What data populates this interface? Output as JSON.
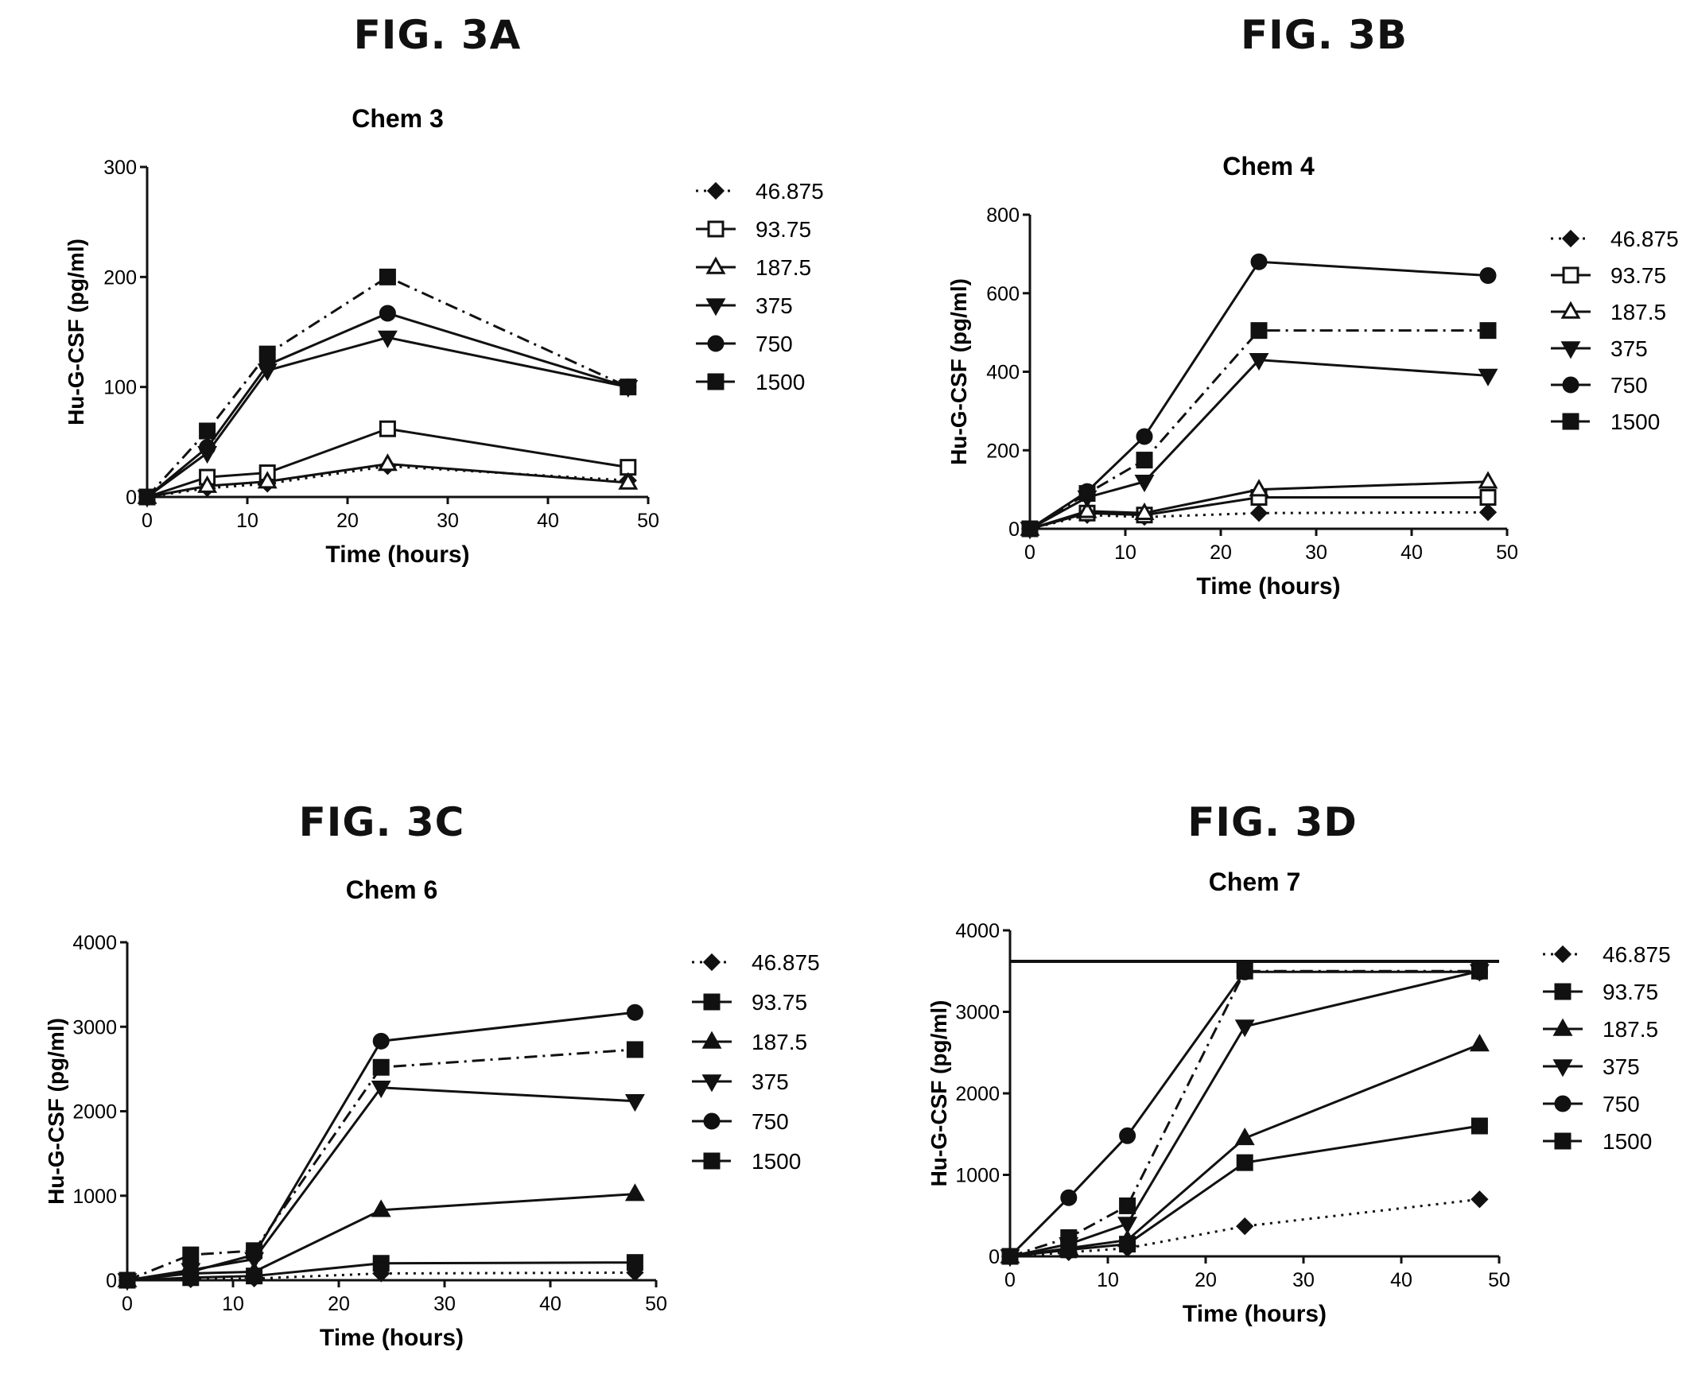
{
  "figures": [
    {
      "label": "FIG. 3A"
    },
    {
      "label": "FIG. 3B"
    },
    {
      "label": "FIG. 3C"
    },
    {
      "label": "FIG. 3D"
    }
  ],
  "chart_data": [
    {
      "type": "line",
      "title": "Chem 3",
      "xlabel": "Time (hours)",
      "ylabel": "Hu-G-CSF (pg/ml)",
      "xlim": [
        0,
        50
      ],
      "ylim": [
        0,
        300
      ],
      "xticks": [
        0,
        10,
        20,
        30,
        40,
        50
      ],
      "yticks": [
        0,
        100,
        200,
        300
      ],
      "legend": "right",
      "x": [
        0,
        6,
        12,
        24,
        48
      ],
      "series": [
        {
          "name": "46.875",
          "marker": "diamond",
          "dash": "dot",
          "values": [
            0,
            8,
            12,
            28,
            15
          ]
        },
        {
          "name": "93.75",
          "marker": "square-open",
          "dash": "solid",
          "values": [
            0,
            18,
            22,
            62,
            27
          ]
        },
        {
          "name": "187.5",
          "marker": "triangle-open",
          "dash": "solid",
          "values": [
            0,
            10,
            14,
            30,
            13
          ]
        },
        {
          "name": "375",
          "marker": "triangle-down",
          "dash": "solid",
          "values": [
            0,
            40,
            115,
            145,
            100
          ]
        },
        {
          "name": "750",
          "marker": "circle",
          "dash": "solid",
          "values": [
            0,
            45,
            120,
            167,
            100
          ]
        },
        {
          "name": "1500",
          "marker": "square",
          "dash": "dashdot",
          "values": [
            0,
            60,
            130,
            200,
            100
          ]
        }
      ]
    },
    {
      "type": "line",
      "title": "Chem 4",
      "xlabel": "Time (hours)",
      "ylabel": "Hu-G-CSF (pg/ml)",
      "xlim": [
        0,
        50
      ],
      "ylim": [
        0,
        800
      ],
      "xticks": [
        0,
        10,
        20,
        30,
        40,
        50
      ],
      "yticks": [
        0,
        200,
        400,
        600,
        800
      ],
      "legend": "right",
      "x": [
        0,
        6,
        12,
        24,
        48
      ],
      "series": [
        {
          "name": "46.875",
          "marker": "diamond",
          "dash": "dot",
          "values": [
            0,
            35,
            30,
            40,
            42
          ]
        },
        {
          "name": "93.75",
          "marker": "square-open",
          "dash": "solid",
          "values": [
            0,
            40,
            35,
            80,
            80
          ]
        },
        {
          "name": "187.5",
          "marker": "triangle-open",
          "dash": "solid",
          "values": [
            0,
            45,
            40,
            100,
            120
          ]
        },
        {
          "name": "375",
          "marker": "triangle-down",
          "dash": "solid",
          "values": [
            0,
            80,
            120,
            430,
            390
          ]
        },
        {
          "name": "750",
          "marker": "circle",
          "dash": "solid",
          "values": [
            0,
            95,
            235,
            680,
            645
          ]
        },
        {
          "name": "1500",
          "marker": "square",
          "dash": "dashdot",
          "values": [
            0,
            90,
            175,
            505,
            505
          ]
        }
      ]
    },
    {
      "type": "line",
      "title": "Chem 6",
      "xlabel": "Time (hours)",
      "ylabel": "Hu-G-CSF (pg/ml)",
      "xlim": [
        0,
        50
      ],
      "ylim": [
        0,
        4000
      ],
      "xticks": [
        0,
        10,
        20,
        30,
        40,
        50
      ],
      "yticks": [
        0,
        1000,
        2000,
        3000,
        4000
      ],
      "legend": "right",
      "x": [
        0,
        6,
        12,
        24,
        48
      ],
      "series": [
        {
          "name": "46.875",
          "marker": "diamond",
          "dash": "dot",
          "values": [
            0,
            10,
            20,
            80,
            90
          ]
        },
        {
          "name": "93.75",
          "marker": "square",
          "dash": "solid",
          "values": [
            0,
            30,
            50,
            200,
            210
          ]
        },
        {
          "name": "187.5",
          "marker": "triangle",
          "dash": "solid",
          "values": [
            0,
            80,
            100,
            830,
            1020
          ]
        },
        {
          "name": "375",
          "marker": "triangle-down",
          "dash": "solid",
          "values": [
            0,
            120,
            250,
            2280,
            2120
          ]
        },
        {
          "name": "750",
          "marker": "circle",
          "dash": "solid",
          "values": [
            0,
            100,
            300,
            2830,
            3170
          ]
        },
        {
          "name": "1500",
          "marker": "square",
          "dash": "dashdot",
          "values": [
            0,
            300,
            350,
            2520,
            2730
          ]
        }
      ]
    },
    {
      "type": "line",
      "title": "Chem 7",
      "xlabel": "Time (hours)",
      "ylabel": "Hu-G-CSF (pg/ml)",
      "xlim": [
        0,
        50
      ],
      "ylim": [
        0,
        4000
      ],
      "xticks": [
        0,
        10,
        20,
        30,
        40,
        50
      ],
      "yticks": [
        0,
        1000,
        2000,
        3000,
        4000
      ],
      "legend": "right",
      "reference_line": 3620,
      "x": [
        0,
        6,
        12,
        24,
        48
      ],
      "series": [
        {
          "name": "46.875",
          "marker": "diamond",
          "dash": "dot",
          "values": [
            0,
            50,
            100,
            370,
            700
          ]
        },
        {
          "name": "93.75",
          "marker": "square",
          "dash": "solid",
          "values": [
            0,
            80,
            150,
            1150,
            1600
          ]
        },
        {
          "name": "187.5",
          "marker": "triangle",
          "dash": "solid",
          "values": [
            0,
            100,
            200,
            1450,
            2600
          ]
        },
        {
          "name": "375",
          "marker": "triangle-down",
          "dash": "solid",
          "values": [
            0,
            150,
            400,
            2820,
            3500
          ]
        },
        {
          "name": "750",
          "marker": "circle",
          "dash": "solid",
          "values": [
            0,
            720,
            1480,
            3490,
            3490
          ]
        },
        {
          "name": "1500",
          "marker": "square",
          "dash": "dashdot",
          "values": [
            0,
            230,
            620,
            3500,
            3500
          ]
        }
      ]
    }
  ]
}
